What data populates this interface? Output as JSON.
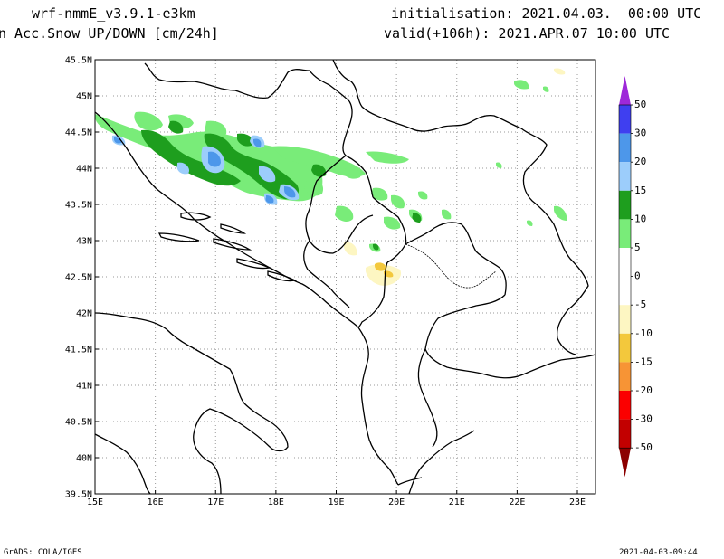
{
  "header": {
    "model": "wrf-nmmE_v3.9.1-e3km",
    "field": "n Acc.Snow UP/DOWN [cm/24h]",
    "initialisation": "initialisation: 2021.04.03.  00:00 UTC",
    "valid": "valid(+106h): 2021.APR.07 10:00 UTC"
  },
  "map": {
    "lat_ticks": [
      "45.5N",
      "45N",
      "44.5N",
      "44N",
      "43.5N",
      "43N",
      "42.5N",
      "42N",
      "41.5N",
      "41N",
      "40.5N",
      "40N",
      "39.5N"
    ],
    "lon_ticks": [
      "15E",
      "16E",
      "17E",
      "18E",
      "19E",
      "20E",
      "21E",
      "22E",
      "23E"
    ],
    "extent": {
      "lon": [
        15,
        23.3
      ],
      "lat": [
        39.5,
        45.5
      ]
    },
    "grid": "dotted",
    "colors": {
      "light_green": "#79ec79",
      "green": "#1e9e1e",
      "light_blue": "#9ccdfb",
      "blue": "#4d97ea",
      "light_yellow": "#fdf6c2",
      "yellow": "#f3c83c"
    }
  },
  "colorbar": {
    "labels": [
      "50",
      "30",
      "20",
      "15",
      "10",
      "5",
      "0",
      "-5",
      "-10",
      "-15",
      "-20",
      "-30",
      "-50"
    ],
    "top_arrow_color": "#9e28d9",
    "bottom_arrow_color": "#8c0000",
    "segments": [
      "#3f3ff0",
      "#4d97ea",
      "#9ccdfb",
      "#1e9e1e",
      "#79ec79",
      "#ffffff",
      "#ffffff",
      "#fdf6c2",
      "#f3c83c",
      "#f79435",
      "#fb0000",
      "#c20000"
    ]
  },
  "footer": {
    "left": "GrADS: COLA/IGES",
    "right": "2021-04-03-09:44"
  }
}
